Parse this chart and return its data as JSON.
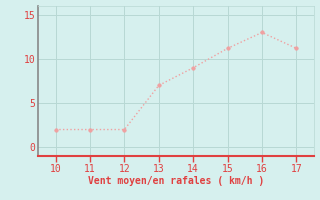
{
  "x": [
    10,
    11,
    12,
    13,
    14,
    15,
    16,
    17
  ],
  "y": [
    2,
    2,
    2,
    7,
    9,
    11.2,
    13,
    11.2
  ],
  "line_color": "#f0a0a0",
  "marker_color": "#f0a0a0",
  "background_color": "#d6f0ee",
  "grid_color": "#b8d8d4",
  "spine_left_color": "#888888",
  "spine_bottom_color": "#e04040",
  "tick_label_color": "#e04040",
  "xlabel": "Vent moyen/en rafales ( km/h )",
  "xlabel_color": "#e04040",
  "xlim": [
    9.5,
    17.5
  ],
  "ylim": [
    -1.0,
    16.0
  ],
  "xticks": [
    10,
    11,
    12,
    13,
    14,
    15,
    16,
    17
  ],
  "yticks": [
    0,
    5,
    10,
    15
  ],
  "label_fontsize": 7,
  "tick_fontsize": 7
}
